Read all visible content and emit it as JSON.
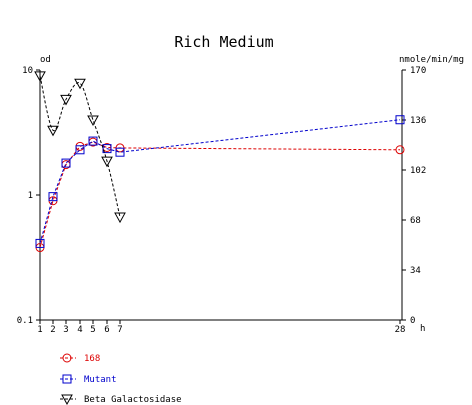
{
  "chart_data": {
    "type": "line",
    "title": "Rich Medium",
    "left_axis": {
      "unit_label": "od",
      "scale": "log",
      "range": [
        0.1,
        10
      ],
      "tick_labels": [
        "10",
        "1",
        "0.1"
      ],
      "tick_values": [
        10,
        1,
        0.1
      ]
    },
    "right_axis": {
      "unit_label": "nmole/min/mg",
      "scale": "linear",
      "range": [
        0,
        170
      ],
      "tick_labels": [
        "170",
        "136",
        "102",
        "68",
        "34",
        "0"
      ],
      "tick_values": [
        170,
        136,
        102,
        68,
        34,
        0
      ]
    },
    "x_axis": {
      "unit_label": "h",
      "range": [
        1,
        28
      ],
      "tick_labels": [
        "1",
        "2",
        "3",
        "4",
        "5",
        "6",
        "7",
        "28"
      ],
      "tick_values": [
        1,
        2,
        3,
        4,
        5,
        6,
        7,
        28
      ]
    },
    "series": [
      {
        "name": "168",
        "axis": "left",
        "color": "#dd0000",
        "marker": "circle",
        "x": [
          1,
          2,
          3,
          4,
          5,
          6,
          7,
          28
        ],
        "y": [
          0.38,
          0.9,
          1.75,
          2.45,
          2.65,
          2.4,
          2.38,
          2.3
        ]
      },
      {
        "name": "Mutant",
        "axis": "left",
        "color": "#0000cc",
        "marker": "square",
        "x": [
          1,
          2,
          3,
          4,
          5,
          6,
          7,
          28
        ],
        "y": [
          0.41,
          0.97,
          1.8,
          2.3,
          2.7,
          2.35,
          2.2,
          4.0
        ]
      },
      {
        "name": "Beta Galactosidase",
        "axis": "right",
        "color": "#000000",
        "marker": "triangle-down",
        "x": [
          1,
          2,
          3,
          4,
          5,
          6,
          7
        ],
        "y": [
          166,
          129,
          150,
          161,
          136,
          108,
          70
        ]
      }
    ]
  }
}
